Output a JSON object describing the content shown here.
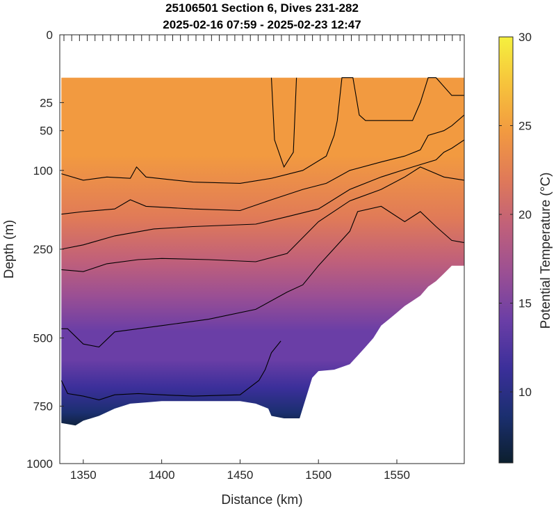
{
  "chart_data": {
    "type": "heatmap",
    "title": "25106501 Section 6, Dives 231-282",
    "subtitle": "2025-02-16 07:59 - 2025-02-23 12:47",
    "xlabel": "Distance (km)",
    "ylabel": "Depth (m)",
    "xlim": [
      1335,
      1593
    ],
    "ylim": [
      1000,
      0
    ],
    "y_scale": "sqrt",
    "x_ticks": [
      1350,
      1400,
      1450,
      1500,
      1550
    ],
    "x_tick_labels": [
      "1350",
      "1400",
      "1450",
      "1500",
      "1550"
    ],
    "y_ticks": [
      0,
      25,
      50,
      100,
      250,
      500,
      750,
      1000
    ],
    "y_tick_labels": [
      "0",
      "25",
      "50",
      "100",
      "250",
      "500",
      "750",
      "1000"
    ],
    "colorbar": {
      "label": "Potential Temperature (°C)",
      "range": [
        6,
        30
      ],
      "ticks": [
        10,
        15,
        20,
        25,
        30
      ],
      "tick_labels": [
        "10",
        "15",
        "20",
        "25",
        "30"
      ],
      "colors": [
        "#0c1f2e",
        "#1b2f70",
        "#3b2f9a",
        "#6a3ea6",
        "#9a4f94",
        "#c0607a",
        "#e07a58",
        "#f29a40",
        "#f6c33c",
        "#f5f03e"
      ]
    },
    "data_top_depth": 10,
    "bottom_depth_profile": {
      "x": [
        1336,
        1345,
        1350,
        1360,
        1370,
        1380,
        1390,
        1400,
        1430,
        1450,
        1460,
        1468,
        1470,
        1478,
        1484,
        1488,
        1496,
        1500,
        1510,
        1515,
        1520,
        1525,
        1530,
        1535,
        1540,
        1545,
        1550,
        1555,
        1560,
        1565,
        1570,
        1575,
        1580,
        1585,
        1590,
        1593
      ],
      "depth": [
        820,
        830,
        810,
        790,
        760,
        740,
        735,
        730,
        730,
        730,
        740,
        760,
        790,
        800,
        800,
        800,
        640,
        615,
        610,
        600,
        590,
        560,
        530,
        500,
        460,
        440,
        420,
        400,
        385,
        370,
        345,
        330,
        310,
        290,
        290,
        290
      ]
    },
    "contours": [
      {
        "level": 23,
        "x": [
          1470,
          1472,
          1478,
          1484,
          1486
        ],
        "depth": [
          10,
          60,
          95,
          75,
          10
        ]
      },
      {
        "level": 22,
        "x": [
          1336,
          1350,
          1365,
          1380,
          1384,
          1390,
          1420,
          1450,
          1470,
          1490,
          1505,
          1510,
          1512,
          1515,
          1522,
          1526,
          1530,
          1545,
          1555,
          1560,
          1565,
          1570,
          1575,
          1585,
          1593
        ],
        "depth": [
          105,
          115,
          110,
          112,
          95,
          110,
          118,
          120,
          112,
          100,
          80,
          55,
          40,
          10,
          10,
          35,
          40,
          40,
          40,
          40,
          25,
          10,
          10,
          20,
          20
        ]
      },
      {
        "level": 21,
        "x": [
          1336,
          1350,
          1370,
          1380,
          1390,
          1420,
          1450,
          1470,
          1490,
          1505,
          1520,
          1540,
          1555,
          1565,
          1570,
          1580,
          1585,
          1593
        ],
        "depth": [
          175,
          170,
          165,
          148,
          160,
          165,
          168,
          148,
          130,
          120,
          100,
          88,
          80,
          72,
          55,
          50,
          45,
          35
        ]
      },
      {
        "level": 20,
        "x": [
          1336,
          1350,
          1370,
          1395,
          1420,
          1460,
          1480,
          1500,
          1520,
          1540,
          1560,
          1575,
          1580,
          1585,
          1593
        ],
        "depth": [
          250,
          240,
          220,
          205,
          200,
          195,
          180,
          165,
          130,
          110,
          95,
          85,
          75,
          70,
          60
        ]
      },
      {
        "level": 19,
        "x": [
          1336,
          1350,
          1365,
          1385,
          1400,
          1430,
          1460,
          1480,
          1500,
          1520,
          1540,
          1555,
          1565,
          1580,
          1593
        ],
        "depth": [
          300,
          305,
          285,
          275,
          272,
          275,
          280,
          260,
          190,
          150,
          130,
          110,
          95,
          110,
          115
        ]
      },
      {
        "level": 18,
        "x": [
          1336,
          1340,
          1350,
          1360,
          1370,
          1385,
          1400,
          1430,
          1460,
          1480,
          1490,
          1500,
          1520,
          1525,
          1540,
          1555,
          1565,
          1575,
          1585,
          1593
        ],
        "depth": [
          470,
          470,
          520,
          530,
          480,
          470,
          460,
          440,
          410,
          360,
          340,
          290,
          210,
          170,
          160,
          190,
          170,
          200,
          230,
          235
        ]
      },
      {
        "level": 12,
        "x": [
          1336,
          1340,
          1350,
          1360,
          1370,
          1385,
          1400,
          1420,
          1450,
          1462,
          1466,
          1470,
          1476
        ],
        "depth": [
          650,
          700,
          710,
          725,
          705,
          700,
          705,
          710,
          705,
          650,
          610,
          550,
          510
        ]
      }
    ]
  }
}
